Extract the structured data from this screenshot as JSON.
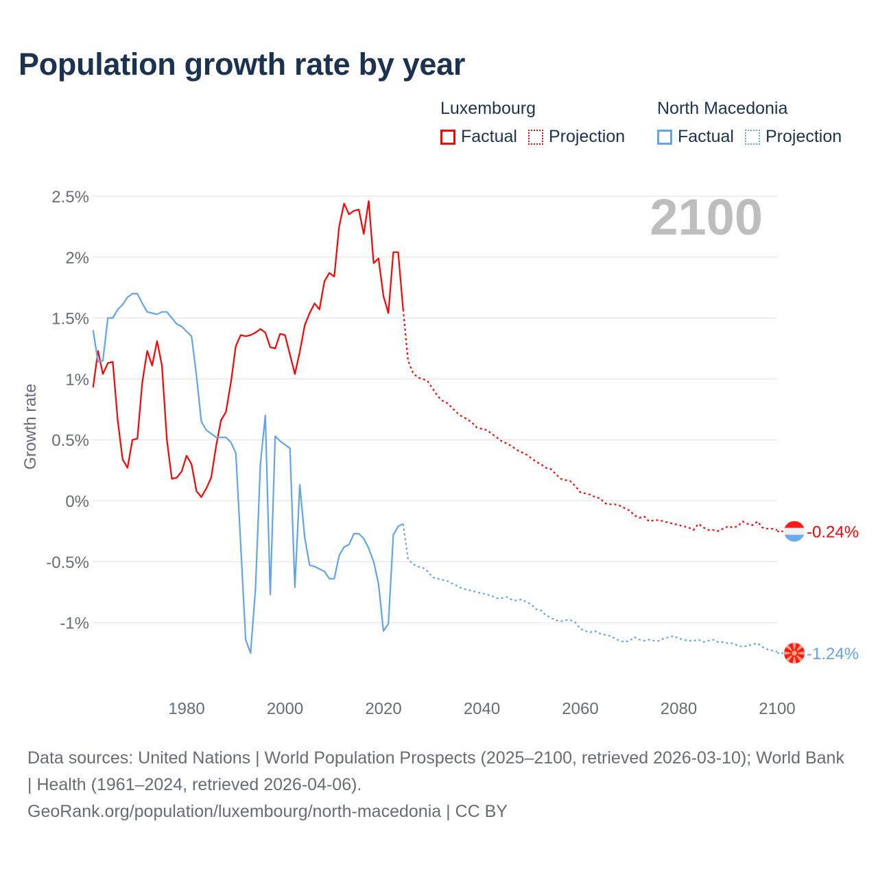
{
  "title": "Population growth rate by year",
  "legend": {
    "groups": [
      {
        "name": "Luxembourg",
        "factual": "Factual",
        "projection": "Projection",
        "color": "#ff0000"
      },
      {
        "name": "North Macedonia",
        "factual": "Factual",
        "projection": "Projection",
        "color": "#5fa4ec"
      }
    ]
  },
  "year_display": "2100",
  "footer": {
    "sources": "Data sources: United Nations | World Population Prospects (2025–2100, retrieved 2026-03-10); World Bank | Health (1961–2024, retrieved 2026-04-06).",
    "link": "GeoRank.org/population/luxembourg/north-macedonia | CC BY"
  },
  "chart_data": {
    "type": "line",
    "title": "Population growth rate by year",
    "xlabel": "",
    "ylabel": "Growth rate",
    "xlim": [
      1961,
      2100
    ],
    "ylim": [
      -1.5,
      2.7
    ],
    "grid": true,
    "y_ticks": [
      {
        "v": 2.5,
        "label": "2.5%"
      },
      {
        "v": 2,
        "label": "2%"
      },
      {
        "v": 1.5,
        "label": "1.5%"
      },
      {
        "v": 1,
        "label": "1%"
      },
      {
        "v": 0.5,
        "label": "0.5%"
      },
      {
        "v": 0,
        "label": "0%"
      },
      {
        "v": -0.5,
        "label": "-0.5%"
      },
      {
        "v": -1,
        "label": "-1%"
      }
    ],
    "x_ticks": [
      {
        "v": 1980,
        "label": "1980"
      },
      {
        "v": 2000,
        "label": "2000"
      },
      {
        "v": 2020,
        "label": "2020"
      },
      {
        "v": 2040,
        "label": "2040"
      },
      {
        "v": 2060,
        "label": "2060"
      },
      {
        "v": 2080,
        "label": "2080"
      },
      {
        "v": 2100,
        "label": "2100"
      }
    ],
    "legend_position": "top-right",
    "series": [
      {
        "name": "Luxembourg",
        "color": "#ff0000",
        "end_label": "-0.24%",
        "factual_start": 1961,
        "factual": [
          0.93,
          1.23,
          1.04,
          1.13,
          1.14,
          0.66,
          0.34,
          0.27,
          0.5,
          0.51,
          0.97,
          1.23,
          1.11,
          1.31,
          1.11,
          0.5,
          0.18,
          0.19,
          0.24,
          0.37,
          0.3,
          0.08,
          0.03,
          0.1,
          0.19,
          0.45,
          0.66,
          0.73,
          0.97,
          1.27,
          1.36,
          1.35,
          1.36,
          1.38,
          1.41,
          1.38,
          1.26,
          1.25,
          1.37,
          1.36,
          1.2,
          1.04,
          1.22,
          1.44,
          1.54,
          1.62,
          1.57,
          1.8,
          1.87,
          1.84,
          2.25,
          2.44,
          2.35,
          2.38,
          2.39,
          2.19,
          2.46,
          1.95,
          1.99,
          1.68,
          1.54,
          2.04,
          2.04,
          1.57
        ],
        "projection_start": 2024,
        "projection": [
          1.57,
          1.15,
          1.05,
          1.01,
          1.0,
          0.98,
          0.92,
          0.86,
          0.82,
          0.8,
          0.76,
          0.72,
          0.69,
          0.67,
          0.64,
          0.6,
          0.59,
          0.58,
          0.55,
          0.52,
          0.49,
          0.47,
          0.45,
          0.42,
          0.4,
          0.38,
          0.35,
          0.32,
          0.3,
          0.27,
          0.26,
          0.22,
          0.18,
          0.17,
          0.16,
          0.12,
          0.07,
          0.06,
          0.05,
          0.03,
          0.02,
          -0.02,
          -0.03,
          -0.03,
          -0.04,
          -0.06,
          -0.08,
          -0.12,
          -0.14,
          -0.13,
          -0.17,
          -0.16,
          -0.16,
          -0.17,
          -0.18,
          -0.19,
          -0.2,
          -0.21,
          -0.22,
          -0.24,
          -0.19,
          -0.22,
          -0.24,
          -0.24,
          -0.25,
          -0.23,
          -0.21,
          -0.22,
          -0.21,
          -0.17,
          -0.19,
          -0.2,
          -0.17,
          -0.22,
          -0.23,
          -0.23,
          -0.24
        ]
      },
      {
        "name": "North Macedonia",
        "color": "#5fa4ec",
        "end_label": "-1.24%",
        "factual_start": 1961,
        "factual": [
          1.4,
          1.14,
          1.15,
          1.5,
          1.5,
          1.57,
          1.61,
          1.67,
          1.7,
          1.7,
          1.62,
          1.55,
          1.54,
          1.53,
          1.55,
          1.55,
          1.5,
          1.45,
          1.43,
          1.39,
          1.35,
          1.03,
          0.65,
          0.58,
          0.55,
          0.52,
          0.52,
          0.52,
          0.48,
          0.39,
          -0.36,
          -1.14,
          -1.25,
          -0.72,
          0.3,
          0.7,
          -0.77,
          0.53,
          0.49,
          0.46,
          0.43,
          -0.71,
          0.13,
          -0.3,
          -0.53,
          -0.54,
          -0.56,
          -0.58,
          -0.64,
          -0.64,
          -0.45,
          -0.38,
          -0.36,
          -0.27,
          -0.27,
          -0.31,
          -0.39,
          -0.5,
          -0.68,
          -1.07,
          -1.01,
          -0.28,
          -0.21,
          -0.19
        ],
        "projection_start": 2024,
        "projection": [
          -0.19,
          -0.48,
          -0.52,
          -0.54,
          -0.55,
          -0.58,
          -0.63,
          -0.64,
          -0.65,
          -0.66,
          -0.68,
          -0.7,
          -0.72,
          -0.73,
          -0.74,
          -0.75,
          -0.76,
          -0.77,
          -0.78,
          -0.8,
          -0.8,
          -0.79,
          -0.81,
          -0.82,
          -0.81,
          -0.83,
          -0.85,
          -0.89,
          -0.9,
          -0.94,
          -0.96,
          -0.98,
          -0.99,
          -0.98,
          -0.98,
          -1.0,
          -1.05,
          -1.07,
          -1.08,
          -1.07,
          -1.09,
          -1.1,
          -1.11,
          -1.13,
          -1.15,
          -1.16,
          -1.15,
          -1.12,
          -1.14,
          -1.15,
          -1.14,
          -1.15,
          -1.15,
          -1.13,
          -1.12,
          -1.11,
          -1.13,
          -1.14,
          -1.15,
          -1.15,
          -1.14,
          -1.16,
          -1.15,
          -1.14,
          -1.16,
          -1.16,
          -1.17,
          -1.17,
          -1.19,
          -1.2,
          -1.19,
          -1.18,
          -1.17,
          -1.2,
          -1.22,
          -1.23,
          -1.24
        ]
      }
    ]
  }
}
